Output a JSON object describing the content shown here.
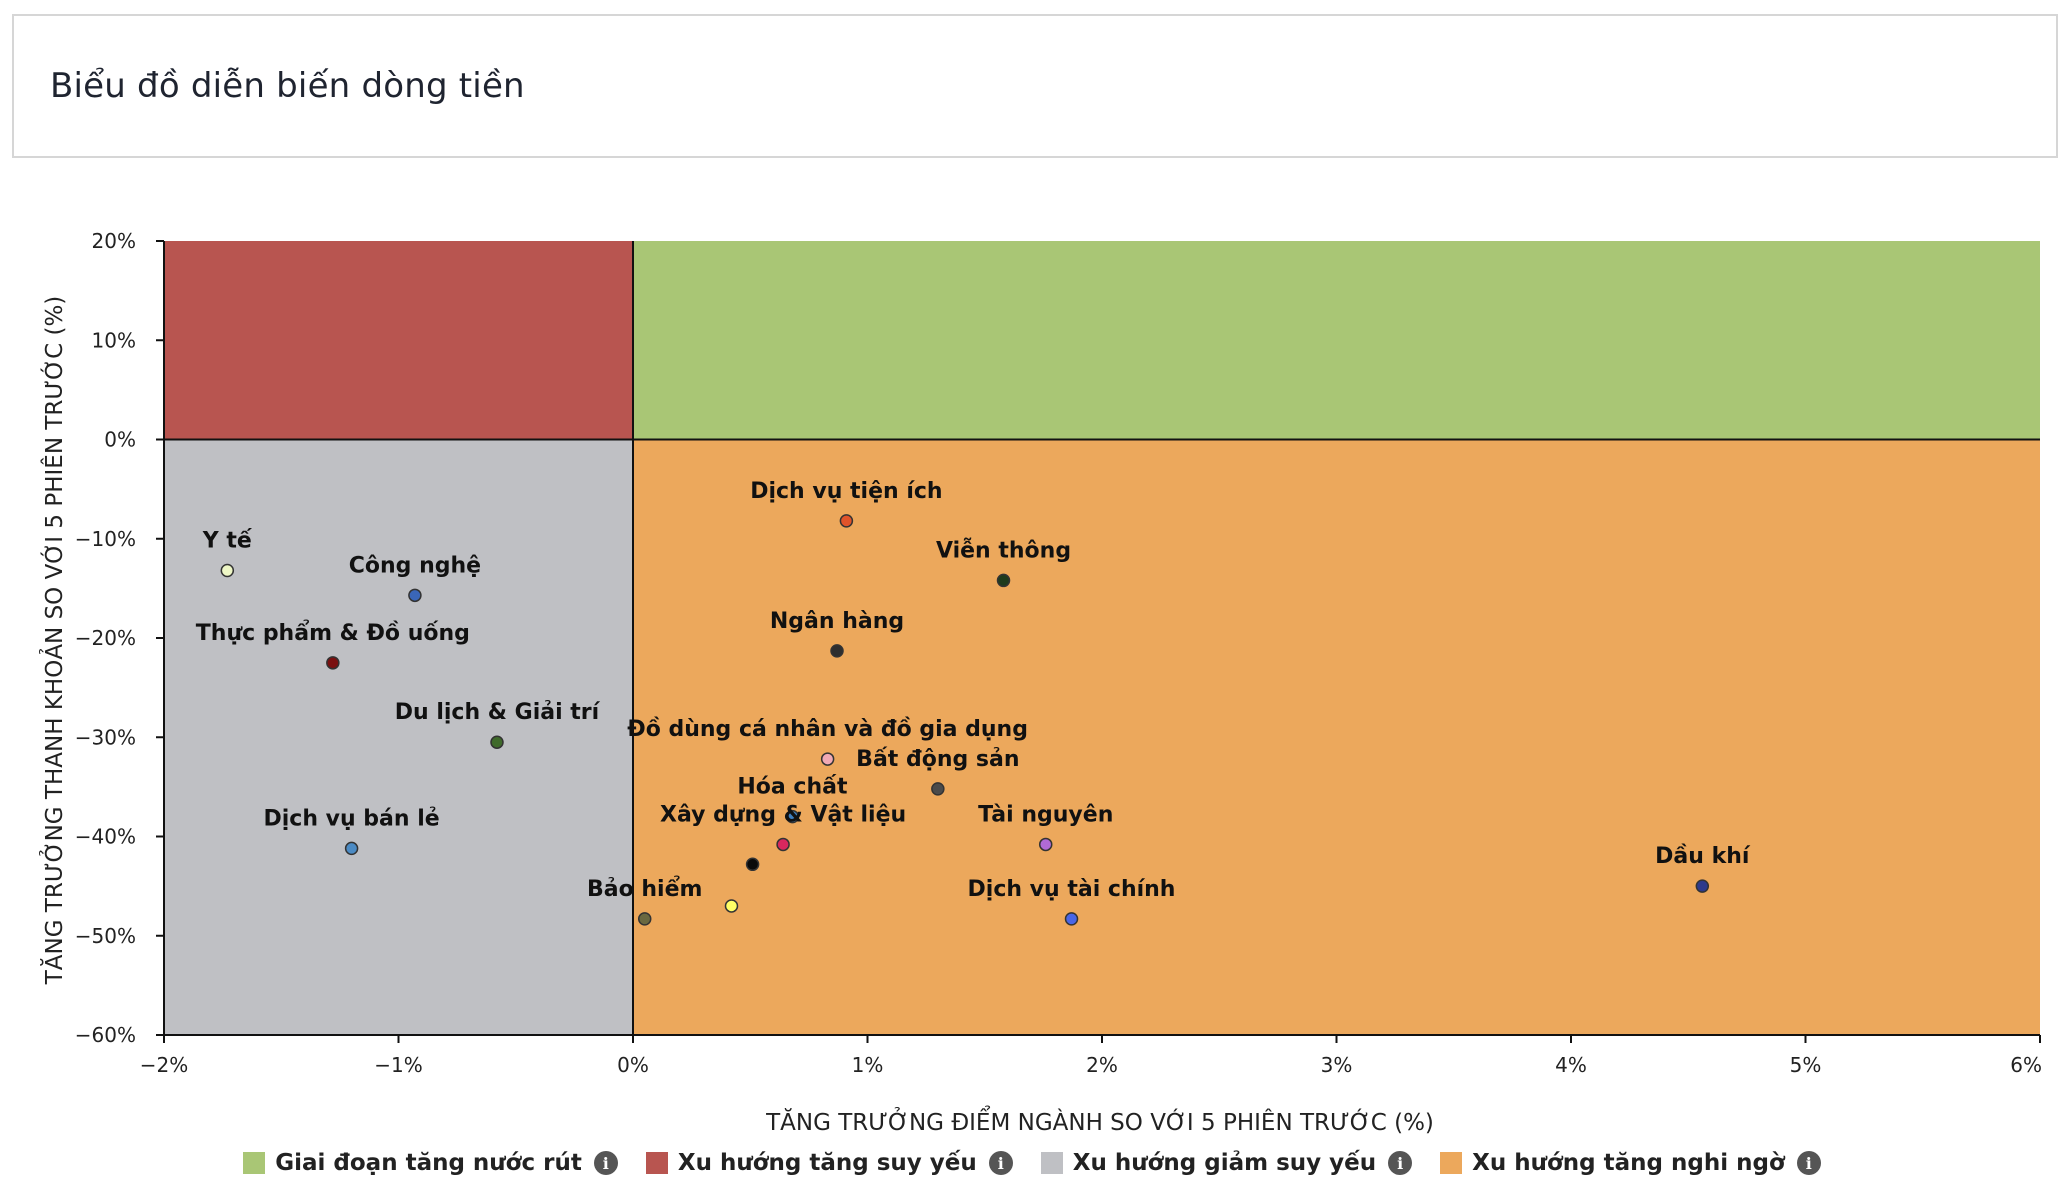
{
  "header": {
    "title": "Biểu đồ diễn biến dòng tiền"
  },
  "legend": [
    {
      "label": "Giai đoạn tăng nước rút",
      "color": "#a9c675",
      "icon": "info-icon"
    },
    {
      "label": "Xu hướng tăng suy yếu",
      "color": "#b85550",
      "icon": "info-icon"
    },
    {
      "label": "Xu hướng giảm suy yếu",
      "color": "#bfc0c4",
      "icon": "info-icon"
    },
    {
      "label": "Xu hướng tăng nghi ngờ",
      "color": "#eca85c",
      "icon": "info-icon"
    }
  ],
  "chart_data": {
    "type": "scatter",
    "xlabel": "TĂNG TRƯỞNG ĐIỂM NGÀNH SO VỚI 5 PHIÊN TRƯỚC (%)",
    "ylabel": "TĂNG TRƯỞNG THANH KHOẢN SO VỚI 5 PHIÊN TRƯỚC (%)",
    "xlim": [
      -2,
      6
    ],
    "ylim": [
      -60,
      20
    ],
    "x_ticks": [
      -2,
      -1,
      0,
      1,
      2,
      3,
      4,
      5,
      6
    ],
    "x_tick_labels": [
      "−2%",
      "−1%",
      "0%",
      "1%",
      "2%",
      "3%",
      "4%",
      "5%",
      "6%"
    ],
    "y_ticks": [
      20,
      10,
      0,
      -10,
      -20,
      -30,
      -40,
      -50,
      -60
    ],
    "y_tick_labels": [
      "20%",
      "10%",
      "0%",
      "−10%",
      "−20%",
      "−30%",
      "−40%",
      "−50%",
      "−60%"
    ],
    "quadrants": [
      {
        "name": "Giai đoạn tăng nước rút",
        "x": [
          0,
          6
        ],
        "y": [
          0,
          20
        ],
        "color": "#a9c675"
      },
      {
        "name": "Xu hướng tăng suy yếu",
        "x": [
          -2,
          0
        ],
        "y": [
          0,
          20
        ],
        "color": "#b85550"
      },
      {
        "name": "Xu hướng giảm suy yếu",
        "x": [
          -2,
          0
        ],
        "y": [
          -60,
          0
        ],
        "color": "#bfc0c4"
      },
      {
        "name": "Xu hướng tăng nghi ngờ",
        "x": [
          0,
          6
        ],
        "y": [
          -60,
          0
        ],
        "color": "#eca85c"
      }
    ],
    "points": [
      {
        "label": "Y tế",
        "x": -1.73,
        "y": -13.2,
        "color": "#eef7c6"
      },
      {
        "label": "Công nghệ",
        "x": -0.93,
        "y": -15.7,
        "color": "#3a66b8"
      },
      {
        "label": "Thực phẩm & Đồ uống",
        "x": -1.28,
        "y": -22.5,
        "color": "#7a1010"
      },
      {
        "label": "Du lịch & Giải trí",
        "x": -0.58,
        "y": -30.5,
        "color": "#3f6a2b"
      },
      {
        "label": "Dịch vụ bán lẻ",
        "x": -1.2,
        "y": -41.2,
        "color": "#4c8bc4"
      },
      {
        "label": "Dịch vụ tiện ích",
        "x": 0.91,
        "y": -8.2,
        "color": "#e0532a"
      },
      {
        "label": "Viễn thông",
        "x": 1.58,
        "y": -14.2,
        "color": "#1f3b1c"
      },
      {
        "label": "Ngân hàng",
        "x": 0.87,
        "y": -21.3,
        "color": "#2e2e2e"
      },
      {
        "label": "Đồ dùng cá nhân và đồ gia dụng",
        "x": 0.83,
        "y": -32.2,
        "color": "#f0a9b4"
      },
      {
        "label": "Bất động sản",
        "x": 1.3,
        "y": -35.2,
        "color": "#4a4a4a"
      },
      {
        "label": "Hóa chất",
        "x": 0.68,
        "y": -38.0,
        "color": "#3f7fbf"
      },
      {
        "label": "Xây dựng & Vật liệu",
        "x": 0.64,
        "y": -40.8,
        "color": "#d8285e"
      },
      {
        "label": "",
        "x": 0.51,
        "y": -42.8,
        "color": "#0a0a0a"
      },
      {
        "label": "Tài nguyên",
        "x": 1.76,
        "y": -40.8,
        "color": "#b06ad6"
      },
      {
        "label": "Bảo hiểm",
        "x": 0.05,
        "y": -48.3,
        "color": "#6a6840"
      },
      {
        "label": "",
        "x": 0.42,
        "y": -47.0,
        "color": "#ffff66"
      },
      {
        "label": "Dịch vụ tài chính",
        "x": 1.87,
        "y": -48.3,
        "color": "#4a66e6"
      },
      {
        "label": "Dầu khí",
        "x": 4.56,
        "y": -45.0,
        "color": "#2d3a8c"
      }
    ]
  }
}
